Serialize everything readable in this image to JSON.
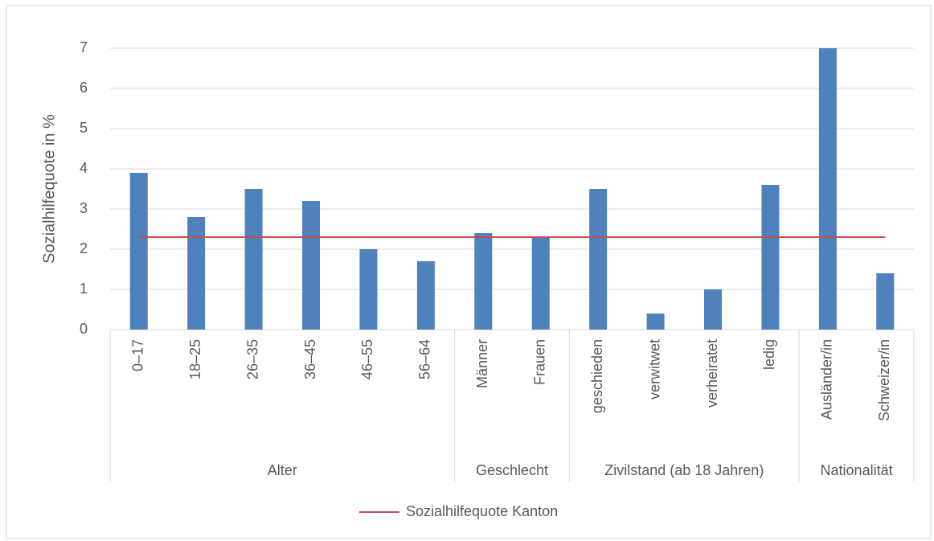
{
  "chart_data": {
    "type": "bar",
    "ylabel": "Sozialhilfequote in %",
    "ylim": [
      0,
      7
    ],
    "yticks": [
      0,
      1,
      2,
      3,
      4,
      5,
      6,
      7
    ],
    "grid": true,
    "color": "#4f81bd",
    "groups": [
      {
        "name": "Alter",
        "categories": [
          "0–17",
          "18–25",
          "26–35",
          "36–45",
          "46–55",
          "56–64"
        ],
        "values": [
          3.9,
          2.8,
          3.5,
          3.2,
          2.0,
          1.7
        ]
      },
      {
        "name": "Geschlecht",
        "categories": [
          "Männer",
          "Frauen"
        ],
        "values": [
          2.4,
          2.3
        ]
      },
      {
        "name": "Zivilstand (ab 18 Jahren)",
        "categories": [
          "geschieden",
          "verwitwet",
          "verheiratet",
          "ledig"
        ],
        "values": [
          3.5,
          0.4,
          1.0,
          3.6
        ]
      },
      {
        "name": "Nationalität",
        "categories": [
          "Ausländer/in",
          "Schweizer/in"
        ],
        "values": [
          7.0,
          1.4
        ]
      }
    ],
    "reference": {
      "name": "Sozialhilfequote Kanton",
      "value": 2.3,
      "color": "#c0504d"
    },
    "legend": "bottom"
  }
}
